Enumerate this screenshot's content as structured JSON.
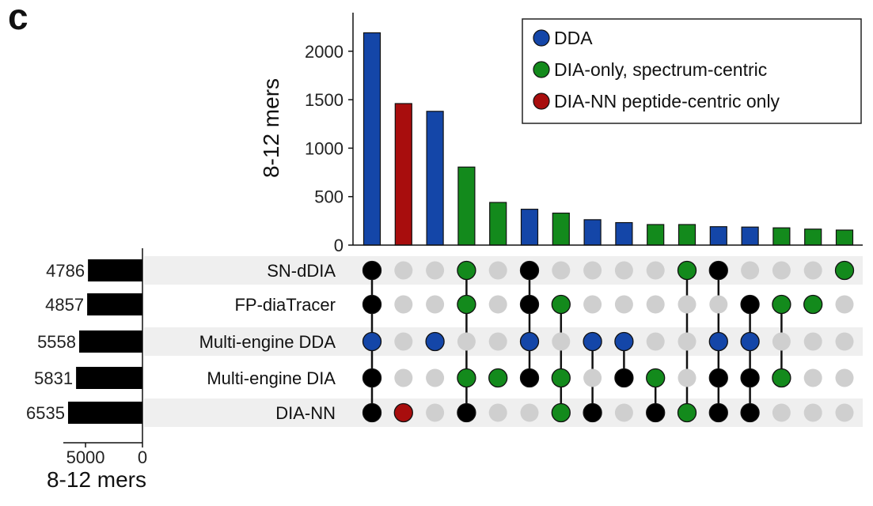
{
  "panel_letter": "c",
  "colors": {
    "DDA": "#1446a8",
    "DIA-only, spectrum-centric": "#138a1c",
    "DIA-NN peptide-centric only": "#a80d0d",
    "member_default": "#000000",
    "inactive_dot": "#cfcfcf",
    "stripe": "#efefef"
  },
  "chart_data": {
    "type": "bar",
    "ylabel": "8-12 mers",
    "ylim": [
      0,
      2300
    ],
    "yticks": [
      0,
      500,
      1000,
      1500,
      2000
    ],
    "legend": {
      "position": "top-right",
      "entries": [
        "DDA",
        "DIA-only, spectrum-centric",
        "DIA-NN peptide-centric only"
      ]
    },
    "sets": [
      {
        "name": "SN-dDIA",
        "size": 4786,
        "size_label": "4786"
      },
      {
        "name": "FP-diaTracer",
        "size": 4857,
        "size_label": "4857"
      },
      {
        "name": "Multi-engine DDA",
        "size": 5558,
        "size_label": "5558"
      },
      {
        "name": "Multi-engine DIA",
        "size": 5831,
        "size_label": "5831"
      },
      {
        "name": "DIA-NN",
        "size": 6535,
        "size_label": "6535"
      }
    ],
    "set_size_axis": {
      "xlabel": "8-12 mers",
      "ticks": [
        {
          "value": 5000,
          "label": "5000"
        },
        {
          "value": 0,
          "label": "0"
        }
      ],
      "xlim": [
        0,
        6950
      ]
    },
    "intersections": [
      {
        "value": 2190,
        "category": "DDA",
        "members": [
          0,
          1,
          2,
          3,
          4
        ],
        "dot_color": {
          "2": "DDA"
        }
      },
      {
        "value": 1460,
        "category": "DIA-NN peptide-centric only",
        "members": [
          4
        ],
        "dot_color": {
          "4": "DIA-NN peptide-centric only"
        }
      },
      {
        "value": 1380,
        "category": "DDA",
        "members": [
          2
        ],
        "dot_color": {
          "2": "DDA"
        }
      },
      {
        "value": 805,
        "category": "DIA-only, spectrum-centric",
        "members": [
          0,
          1,
          3,
          4
        ],
        "dot_color": {
          "0": "DIA-only, spectrum-centric",
          "1": "DIA-only, spectrum-centric",
          "3": "DIA-only, spectrum-centric"
        }
      },
      {
        "value": 440,
        "category": "DIA-only, spectrum-centric",
        "members": [
          3
        ],
        "dot_color": {
          "3": "DIA-only, spectrum-centric"
        }
      },
      {
        "value": 370,
        "category": "DDA",
        "members": [
          0,
          1,
          2,
          3
        ],
        "dot_color": {
          "2": "DDA"
        }
      },
      {
        "value": 330,
        "category": "DIA-only, spectrum-centric",
        "members": [
          1,
          3,
          4
        ],
        "dot_color": {
          "1": "DIA-only, spectrum-centric",
          "3": "DIA-only, spectrum-centric",
          "4": "DIA-only, spectrum-centric"
        }
      },
      {
        "value": 262,
        "category": "DDA",
        "members": [
          2,
          4
        ],
        "dot_color": {
          "2": "DDA"
        }
      },
      {
        "value": 232,
        "category": "DDA",
        "members": [
          2,
          3
        ],
        "dot_color": {
          "2": "DDA"
        }
      },
      {
        "value": 212,
        "category": "DIA-only, spectrum-centric",
        "members": [
          3,
          4
        ],
        "dot_color": {
          "3": "DIA-only, spectrum-centric"
        }
      },
      {
        "value": 212,
        "category": "DIA-only, spectrum-centric",
        "members": [
          0,
          4
        ],
        "dot_color": {
          "0": "DIA-only, spectrum-centric",
          "4": "DIA-only, spectrum-centric"
        }
      },
      {
        "value": 190,
        "category": "DDA",
        "members": [
          0,
          2,
          3,
          4
        ],
        "dot_color": {
          "2": "DDA"
        }
      },
      {
        "value": 186,
        "category": "DDA",
        "members": [
          1,
          2,
          3,
          4
        ],
        "dot_color": {
          "2": "DDA"
        }
      },
      {
        "value": 178,
        "category": "DIA-only, spectrum-centric",
        "members": [
          1,
          3
        ],
        "dot_color": {
          "1": "DIA-only, spectrum-centric",
          "3": "DIA-only, spectrum-centric"
        }
      },
      {
        "value": 165,
        "category": "DIA-only, spectrum-centric",
        "members": [
          1
        ],
        "dot_color": {
          "1": "DIA-only, spectrum-centric"
        }
      },
      {
        "value": 155,
        "category": "DIA-only, spectrum-centric",
        "members": [
          0
        ],
        "dot_color": {
          "0": "DIA-only, spectrum-centric"
        }
      }
    ]
  }
}
